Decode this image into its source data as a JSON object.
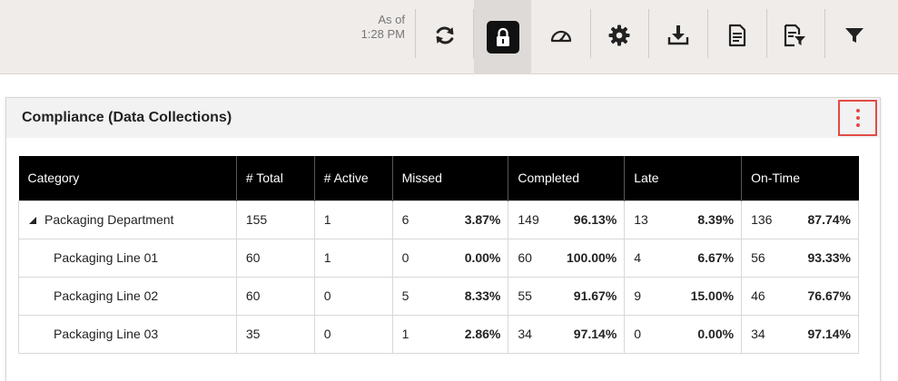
{
  "toolbar": {
    "as_of_label": "As of",
    "as_of_time": "1:28 PM",
    "buttons": [
      {
        "name": "refresh"
      },
      {
        "name": "lock"
      },
      {
        "name": "dashboard"
      },
      {
        "name": "settings"
      },
      {
        "name": "download"
      },
      {
        "name": "document"
      },
      {
        "name": "document-filter"
      },
      {
        "name": "filter"
      }
    ]
  },
  "panel": {
    "title": "Compliance (Data Collections)"
  },
  "table": {
    "headers": [
      "Category",
      "# Total",
      "# Active",
      "Missed",
      "Completed",
      "Late",
      "On-Time"
    ],
    "rows": [
      {
        "category": "Packaging Department",
        "total": "155",
        "active": "1",
        "missed": "6",
        "missed_pct": "3.87%",
        "completed": "149",
        "completed_pct": "96.13%",
        "late": "13",
        "late_pct": "8.39%",
        "ontime": "136",
        "ontime_pct": "87.74%"
      },
      {
        "category": "Packaging Line 01",
        "total": "60",
        "active": "1",
        "missed": "0",
        "missed_pct": "0.00%",
        "completed": "60",
        "completed_pct": "100.00%",
        "late": "4",
        "late_pct": "6.67%",
        "ontime": "56",
        "ontime_pct": "93.33%"
      },
      {
        "category": "Packaging Line 02",
        "total": "60",
        "active": "0",
        "missed": "5",
        "missed_pct": "8.33%",
        "completed": "55",
        "completed_pct": "91.67%",
        "late": "9",
        "late_pct": "15.00%",
        "ontime": "46",
        "ontime_pct": "76.67%"
      },
      {
        "category": "Packaging Line 03",
        "total": "35",
        "active": "0",
        "missed": "1",
        "missed_pct": "2.86%",
        "completed": "34",
        "completed_pct": "97.14%",
        "late": "0",
        "late_pct": "0.00%",
        "ontime": "34",
        "ontime_pct": "97.14%"
      }
    ]
  }
}
